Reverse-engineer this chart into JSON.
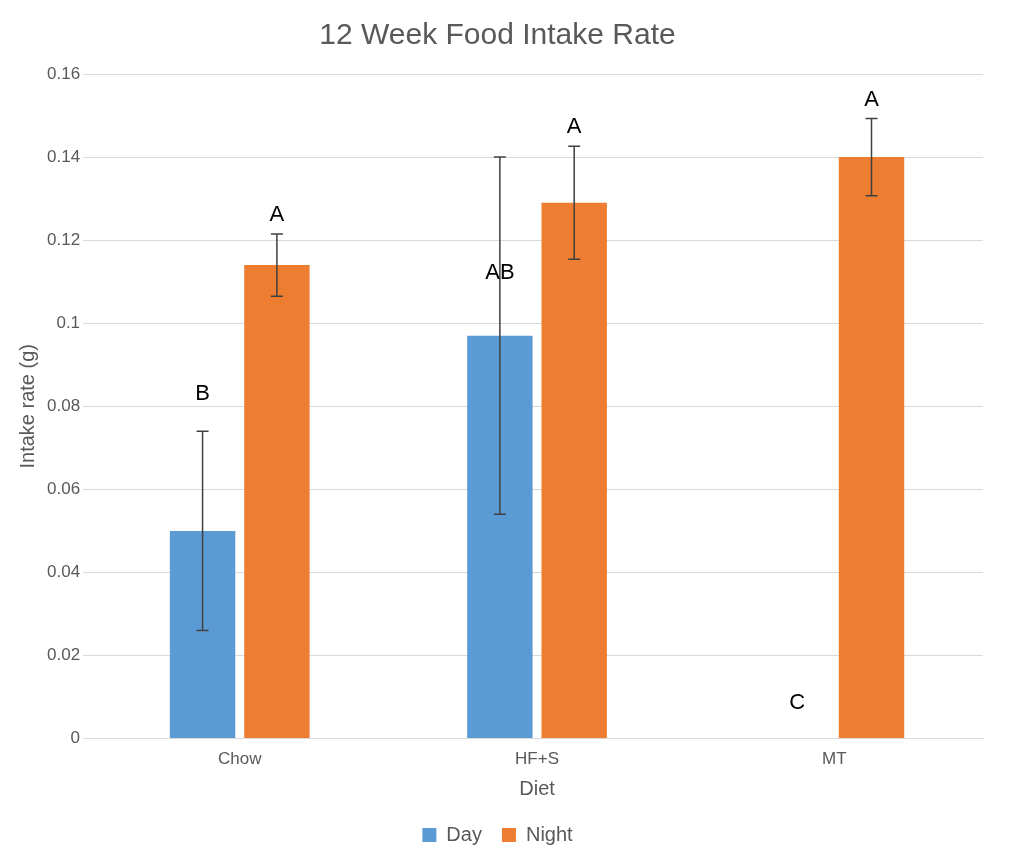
{
  "chart_data": {
    "type": "bar",
    "title": "12 Week Food Intake Rate",
    "xlabel": "Diet",
    "ylabel": "Intake rate (g)",
    "categories": [
      "Chow",
      "HF+S",
      "MT"
    ],
    "series": [
      {
        "name": "Day",
        "color": "#5b9bd5",
        "values": [
          0.05,
          0.097,
          0
        ],
        "errors": [
          0.024,
          0.043,
          null
        ]
      },
      {
        "name": "Night",
        "color": "#ed7d31",
        "values": [
          0.114,
          0.129,
          0.14
        ],
        "errors": [
          0.0075,
          0.0136,
          0.0093
        ]
      }
    ],
    "ylim": [
      0,
      0.16
    ],
    "yticks": [
      0,
      0.02,
      0.04,
      0.06,
      0.08,
      0.1,
      0.12,
      0.14,
      0.16
    ],
    "grid": "y",
    "legend": "bottom",
    "annotations": [
      {
        "text": "B",
        "x": "Chow",
        "y": 0.083
      },
      "A",
      {
        "text": "AB",
        "x": "HF+S",
        "y": 0.112
      },
      "A",
      {
        "text": "C",
        "x": "MT",
        "y": 0.0086
      },
      "A"
    ]
  }
}
